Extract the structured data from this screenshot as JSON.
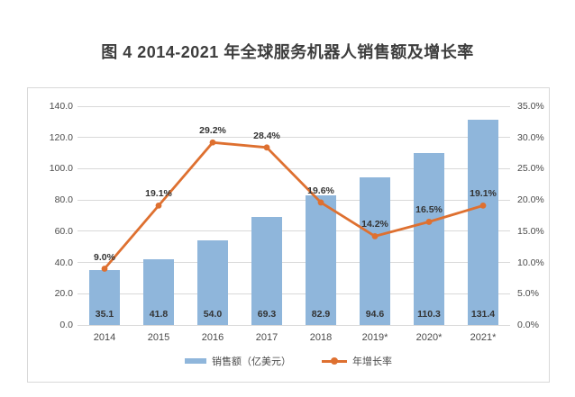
{
  "page": {
    "title": "图 4 2014-2021 年全球服务机器人销售额及增长率"
  },
  "colors": {
    "bar": "#8FB6DB",
    "line": "#DE7030",
    "grid": "#D9D9D9",
    "border": "#D9D9D9",
    "axis_text": "#4A4A4A",
    "label_text": "#333333",
    "title_text": "#3D3D3D"
  },
  "chart_data": {
    "type": "bar+line",
    "title": "图 4 2014-2021 年全球服务机器人销售额及增长率",
    "categories": [
      "2014",
      "2015",
      "2016",
      "2017",
      "2018",
      "2019*",
      "2020*",
      "2021*"
    ],
    "series": [
      {
        "name": "销售额（亿美元）",
        "type": "bar",
        "axis": "left",
        "values": [
          35.1,
          41.8,
          54.0,
          69.3,
          82.9,
          94.6,
          110.3,
          131.4
        ],
        "labels": [
          "35.1",
          "41.8",
          "54.0",
          "69.3",
          "82.9",
          "94.6",
          "110.3",
          "131.4"
        ]
      },
      {
        "name": "年增长率",
        "type": "line",
        "axis": "right",
        "values": [
          9.0,
          19.1,
          29.2,
          28.4,
          19.6,
          14.2,
          16.5,
          19.1
        ],
        "labels": [
          "9.0%",
          "19.1%",
          "29.2%",
          "28.4%",
          "19.6%",
          "14.2%",
          "16.5%",
          "19.1%"
        ]
      }
    ],
    "left_axis": {
      "min": 0,
      "max": 140,
      "step": 20,
      "tick_labels": [
        "0.0",
        "20.0",
        "40.0",
        "60.0",
        "80.0",
        "100.0",
        "120.0",
        "140.0"
      ]
    },
    "right_axis": {
      "min": 0,
      "max": 35,
      "step": 5,
      "tick_labels": [
        "0.0%",
        "5.0%",
        "10.0%",
        "15.0%",
        "20.0%",
        "25.0%",
        "30.0%",
        "35.0%"
      ]
    },
    "grid": true,
    "legend_position": "bottom"
  }
}
